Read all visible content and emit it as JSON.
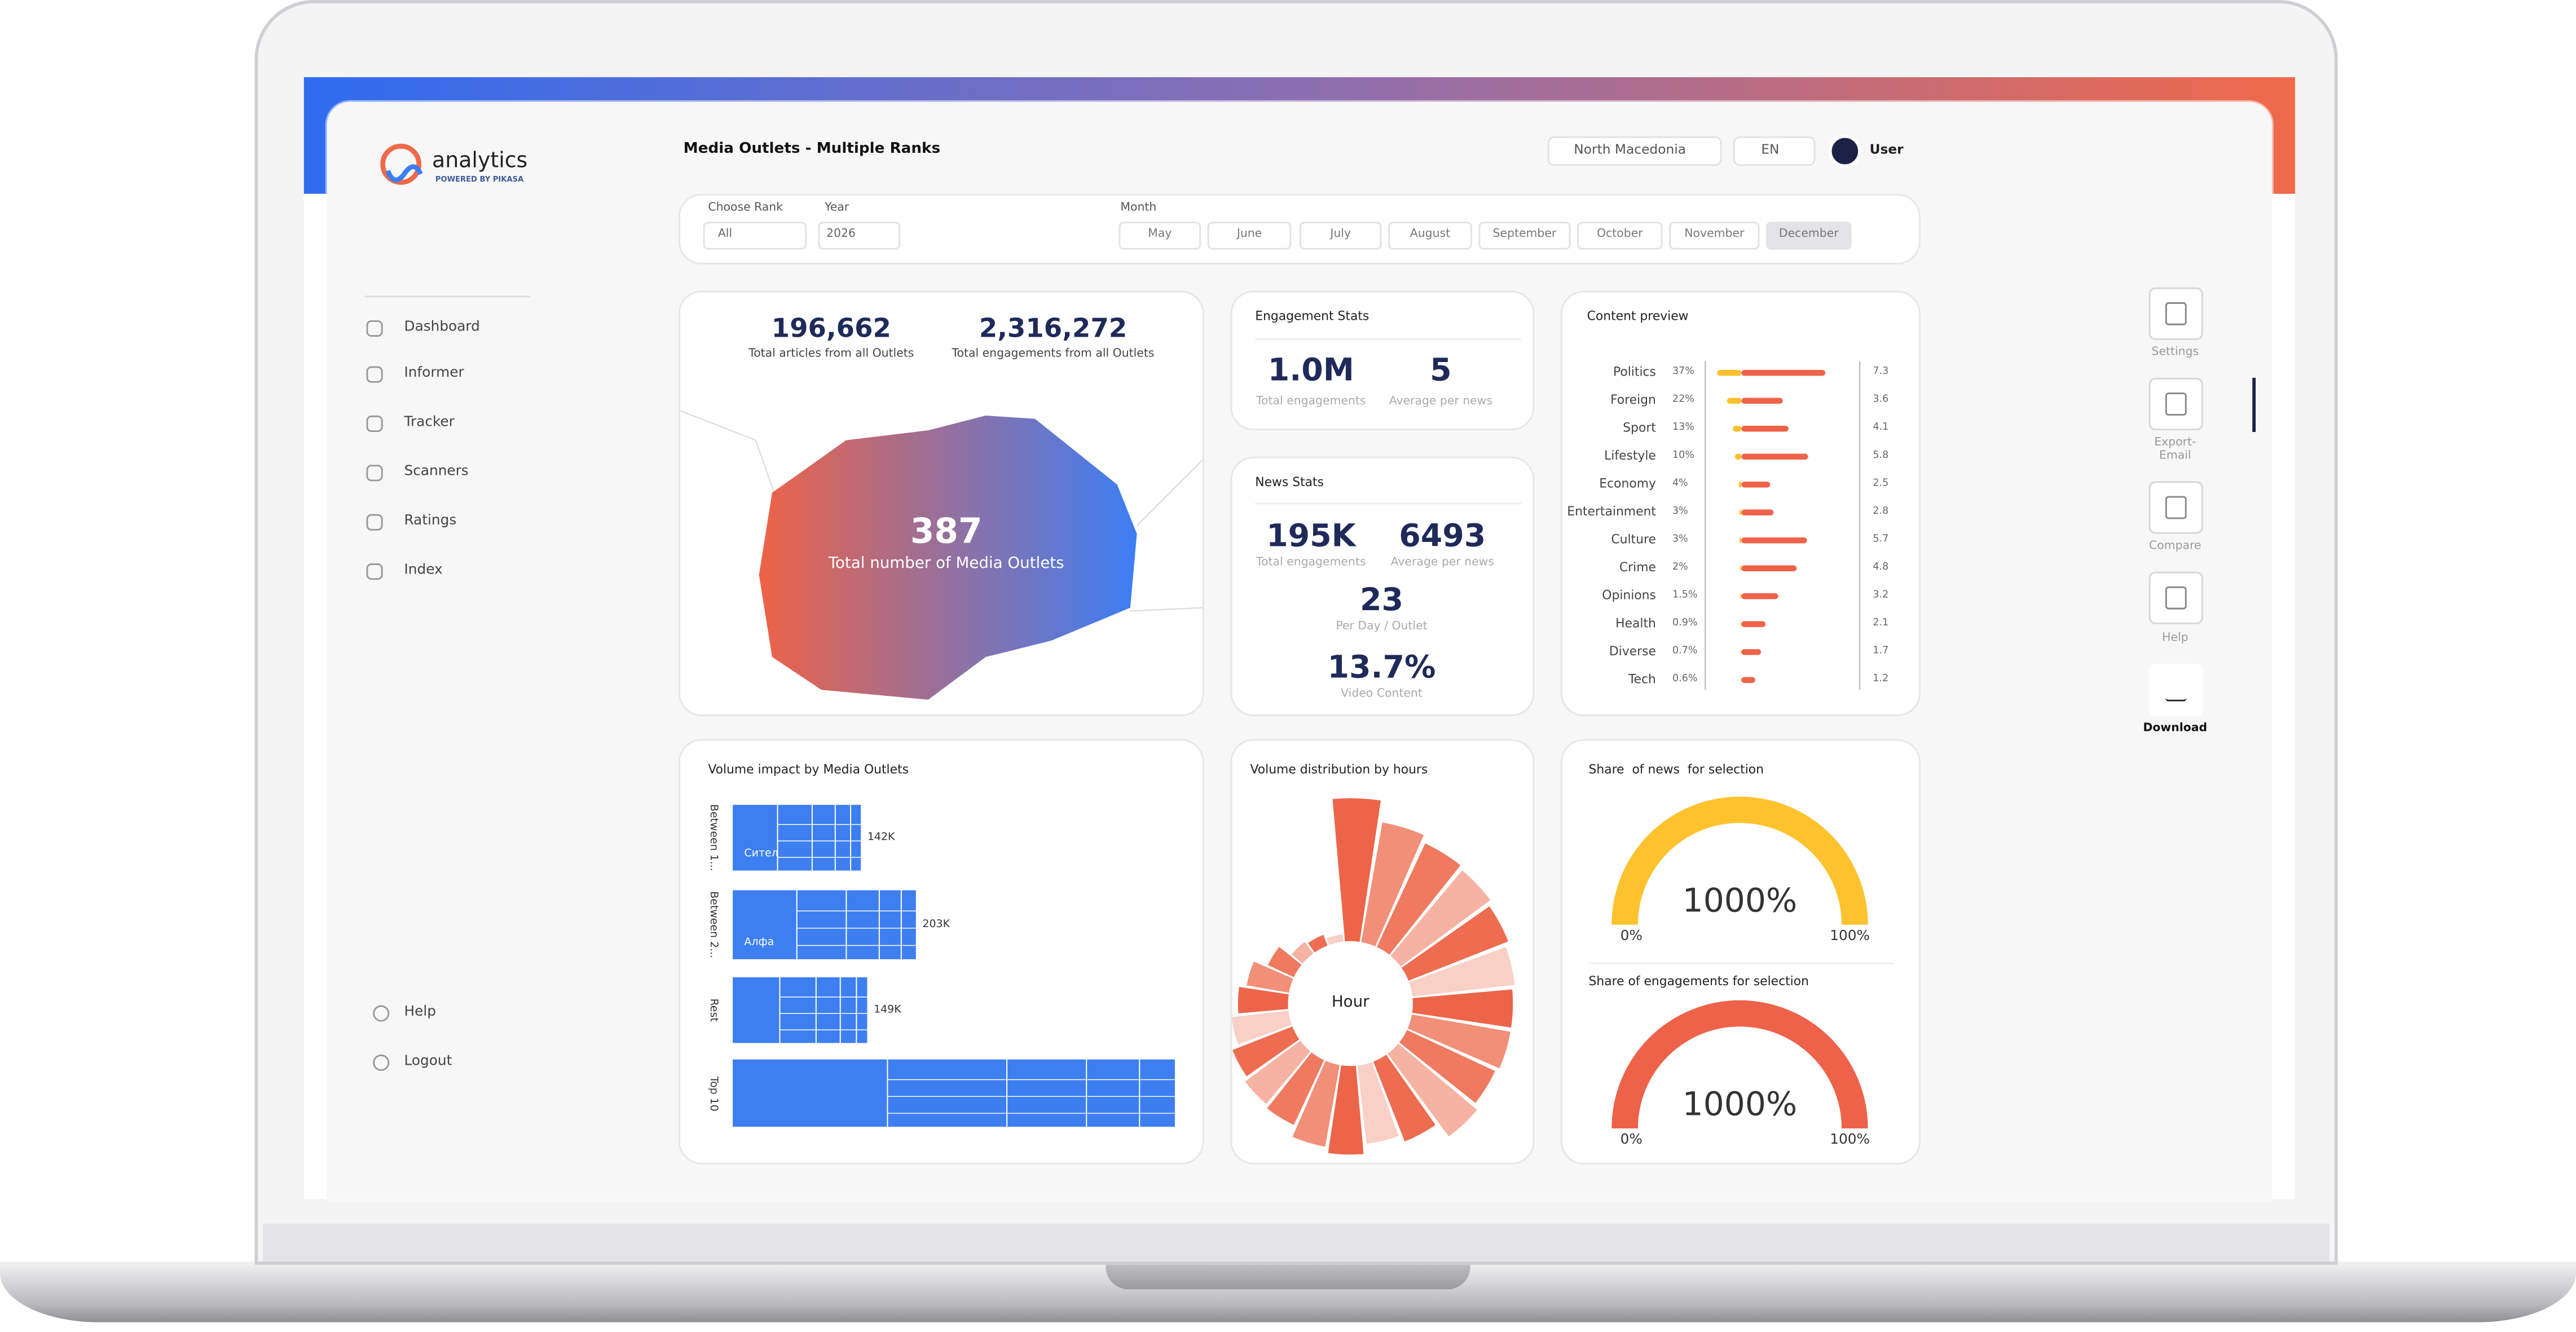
{
  "header": {
    "logo": "analytics",
    "logo_sub": "POWERED BY PIKASA",
    "title": "Media Outlets - Multiple Ranks",
    "country": "North Macedonia",
    "language": "EN",
    "user": "User"
  },
  "sidebar": {
    "nav": [
      "Dashboard",
      "Informer",
      "Tracker",
      "Scanners",
      "Ratings",
      "Index"
    ],
    "footer": [
      "Help",
      "Logout"
    ]
  },
  "filters": {
    "rank_label": "Choose Rank",
    "rank": "All",
    "year_label": "Year",
    "year": "2026",
    "month_label": "Month",
    "months": [
      "May",
      "June",
      "July",
      "August",
      "September",
      "October",
      "November",
      "December"
    ],
    "selected_month_index": 7
  },
  "totals": {
    "articles": "196,662",
    "articles_label": "Total articles from all Outlets",
    "engagements": "2,316,272",
    "engagements_label": "Total engagements from all Outlets",
    "outlets": "387",
    "outlets_label": "Total number of Media Outlets"
  },
  "engagement_stats": {
    "title": "Engagement Stats",
    "items": [
      {
        "value": "1.0M",
        "label": "Total engagements"
      },
      {
        "value": "5",
        "label": "Average per news"
      }
    ]
  },
  "news_stats": {
    "title": "News Stats",
    "items": [
      {
        "value": "195K",
        "label": "Total engagements"
      },
      {
        "value": "6493",
        "label": "Average per news"
      },
      {
        "value": "23",
        "label": "Per Day / Outlet"
      },
      {
        "value": "13.7%",
        "label": "Video Content"
      }
    ]
  },
  "content_preview": {
    "title": "Content preview",
    "share_color": "#fcc02c",
    "score_color": "#ee6249",
    "rows": [
      {
        "name": "Politics",
        "share": 37,
        "share_label": "37%",
        "score": 7.3
      },
      {
        "name": "Foreign",
        "share": 22,
        "share_label": "22%",
        "score": 3.6
      },
      {
        "name": "Sport",
        "share": 13,
        "share_label": "13%",
        "score": 4.1
      },
      {
        "name": "Lifestyle",
        "share": 10,
        "share_label": "10%",
        "score": 5.8
      },
      {
        "name": "Economy",
        "share": 4,
        "share_label": "4%",
        "score": 2.5
      },
      {
        "name": "Entertainment",
        "share": 3,
        "share_label": "3%",
        "score": 2.8
      },
      {
        "name": "Culture",
        "share": 3,
        "share_label": "3%",
        "score": 5.7
      },
      {
        "name": "Crime",
        "share": 2,
        "share_label": "2%",
        "score": 4.8
      },
      {
        "name": "Opinions",
        "share": 1.5,
        "share_label": "1.5%",
        "score": 3.2
      },
      {
        "name": "Health",
        "share": 0.9,
        "share_label": "0.9%",
        "score": 2.1
      },
      {
        "name": "Diverse",
        "share": 0.7,
        "share_label": "0.7%",
        "score": 1.7
      },
      {
        "name": "Tech",
        "share": 0.6,
        "share_label": "0.6%",
        "score": 1.2
      }
    ]
  },
  "volume_impact": {
    "title": "Volume impact by Media Outlets",
    "color": "#3d7ff0",
    "groups": [
      {
        "name": "Between 1...",
        "value": 142000,
        "value_label": "142K",
        "cell_label": "Сител"
      },
      {
        "name": "Between 2...",
        "value": 203000,
        "value_label": "203K",
        "cell_label": "Алфа"
      },
      {
        "name": "Rest",
        "value": 149000,
        "value_label": "149K"
      },
      {
        "name": "Top 10",
        "value": 490000
      }
    ]
  },
  "hours": {
    "title": "Volume distribution by hours",
    "center_label": "Hour",
    "colors": [
      "#ec6549",
      "#f28f78",
      "#ef7a60",
      "#f6b3a3",
      "#ee6c50",
      "#f9d0c6"
    ],
    "values": [
      100,
      85,
      80,
      78,
      75,
      72,
      70,
      70,
      68,
      72,
      60,
      55,
      62,
      58,
      50,
      48,
      45,
      40,
      35,
      30,
      20,
      10,
      8,
      5
    ]
  },
  "share": {
    "gauges": [
      {
        "title": "Share  of news  for selection",
        "value_label": "1000%",
        "min_label": "0%",
        "max_label": "100%",
        "color": "#fdc22d"
      },
      {
        "title": "Share of engagements for selection",
        "value_label": "1000%",
        "min_label": "0%",
        "max_label": "100%",
        "color": "#ee6249"
      }
    ]
  },
  "toolbar": [
    "Settings",
    "Export-Email",
    "Compare",
    "Help",
    "Download"
  ]
}
